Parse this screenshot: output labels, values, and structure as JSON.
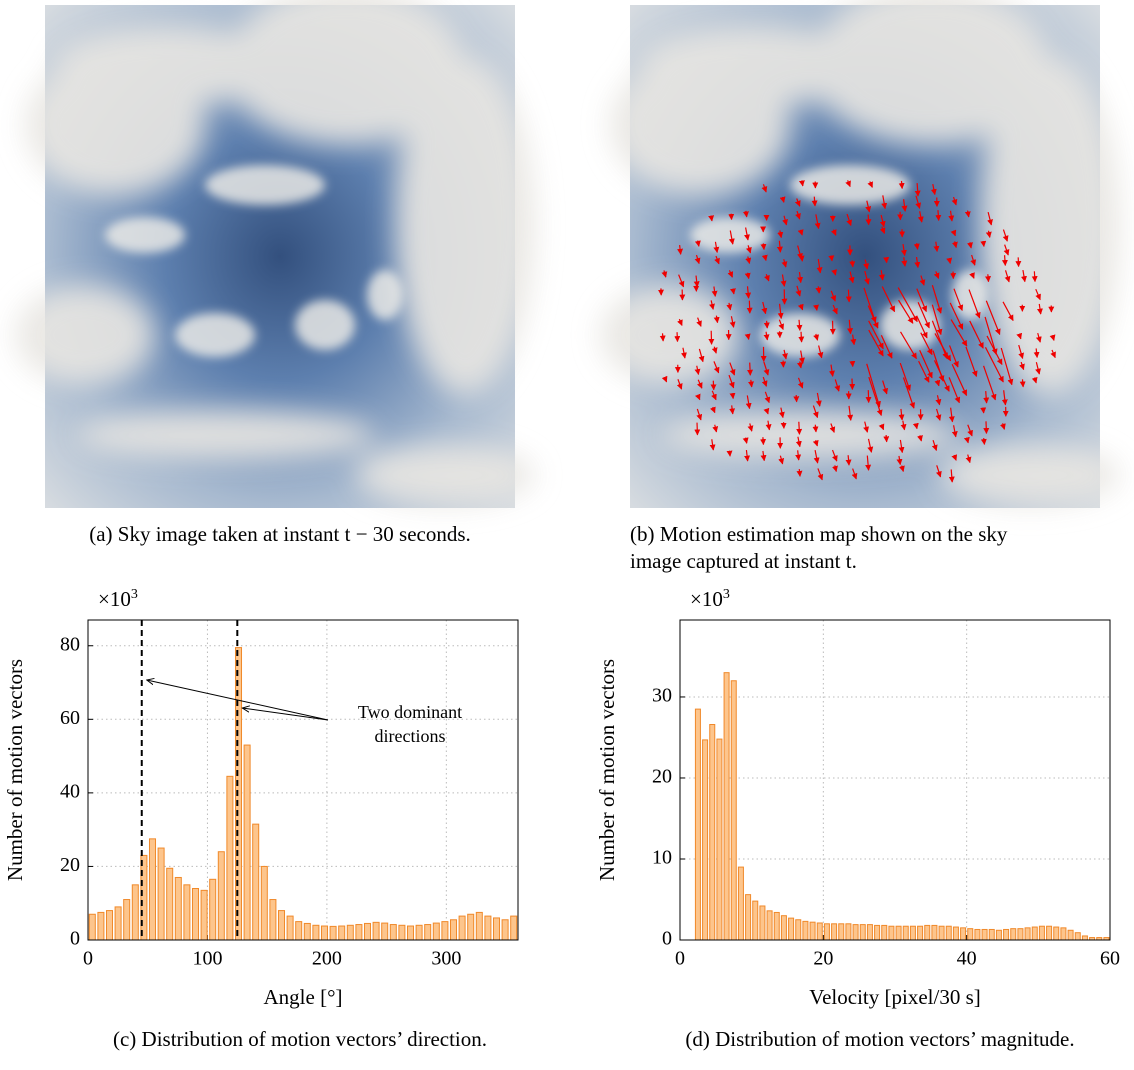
{
  "captions": {
    "a": [
      "(a) Sky image taken at instant t − 30 seconds."
    ],
    "b": [
      "(b) Motion estimation map shown on the sky",
      "image captured at instant t."
    ],
    "c": [
      "(c) Distribution of motion vectors’ direction."
    ],
    "d": [
      "(d) Distribution of motion vectors’ magnitude."
    ]
  },
  "chart_data": [
    {
      "type": "histogram",
      "x_label": "Angle [°]",
      "y_label": "Number of motion vectors",
      "y_multiplier": {
        "base": "×10",
        "exponent": "3"
      },
      "bins": [
        0,
        7.2,
        14.4,
        21.6,
        28.8,
        36,
        43.2,
        50.4,
        57.6,
        64.8,
        72,
        79.2,
        86.4,
        93.6,
        100.8,
        108,
        115.2,
        122.4,
        129.6,
        136.8,
        144,
        151.2,
        158.4,
        165.6,
        172.8,
        180,
        187.2,
        194.4,
        201.6,
        208.8,
        216,
        223.2,
        230.4,
        237.6,
        244.8,
        252,
        259.2,
        266.4,
        273.6,
        280.8,
        288,
        295.2,
        302.4,
        309.6,
        316.8,
        324,
        331.2,
        338.4,
        345.6,
        352.8,
        360
      ],
      "values": [
        7,
        7.5,
        8,
        9,
        11,
        15,
        23,
        27.5,
        25,
        19.5,
        17,
        15,
        14,
        13.5,
        16.5,
        24,
        44.5,
        79.5,
        53,
        31.5,
        20,
        11,
        8,
        6.5,
        5,
        4.5,
        4,
        3.8,
        3.7,
        3.8,
        4,
        4.2,
        4.5,
        4.8,
        4.6,
        4.2,
        4,
        3.8,
        4,
        4.2,
        4.6,
        5,
        5.5,
        6.5,
        7,
        7.5,
        6.5,
        6,
        5.5,
        6.5
      ],
      "color": "#fdc58c",
      "edge_color": "#f0892a",
      "xlim": [
        0,
        360
      ],
      "xticks": [
        0,
        100,
        200,
        300
      ],
      "ylim": [
        0,
        87
      ],
      "yticks": [
        0,
        20,
        40,
        60,
        80
      ],
      "grid": true,
      "vlines": [
        45,
        125
      ],
      "annotation": [
        "Two dominant",
        "directions"
      ]
    },
    {
      "type": "histogram",
      "x_label": "Velocity [pixel/30 s]",
      "y_label": "Number of motion vectors",
      "y_multiplier": {
        "base": "×10",
        "exponent": "3"
      },
      "bins": [
        2,
        3,
        4,
        5,
        6,
        7,
        8,
        9,
        10,
        11,
        12,
        13,
        14,
        15,
        16,
        17,
        18,
        19,
        20,
        21,
        22,
        23,
        24,
        25,
        26,
        27,
        28,
        29,
        30,
        31,
        32,
        33,
        34,
        35,
        36,
        37,
        38,
        39,
        40,
        41,
        42,
        43,
        44,
        45,
        46,
        47,
        48,
        49,
        50,
        51,
        52,
        53,
        54,
        55,
        56,
        57,
        58,
        59,
        60
      ],
      "values": [
        28.5,
        24.7,
        26.6,
        24.8,
        33,
        32,
        9,
        5.6,
        4.8,
        4.2,
        3.6,
        3.4,
        3,
        2.7,
        2.5,
        2.3,
        2.2,
        2.1,
        2,
        2,
        2,
        2,
        1.9,
        1.9,
        1.9,
        1.8,
        1.8,
        1.7,
        1.7,
        1.7,
        1.7,
        1.7,
        1.8,
        1.8,
        1.7,
        1.7,
        1.6,
        1.5,
        1.4,
        1.3,
        1.3,
        1.3,
        1.2,
        1.3,
        1.4,
        1.4,
        1.5,
        1.6,
        1.7,
        1.7,
        1.6,
        1.5,
        1.2,
        0.9,
        0.5,
        0.3,
        0.3,
        0.3
      ],
      "color": "#fdc58c",
      "edge_color": "#f0892a",
      "xlim": [
        0,
        60
      ],
      "xticks": [
        0,
        20,
        40,
        60
      ],
      "ylim": [
        0,
        39.5
      ],
      "yticks": [
        0,
        10,
        20,
        30
      ],
      "grid": true
    }
  ]
}
